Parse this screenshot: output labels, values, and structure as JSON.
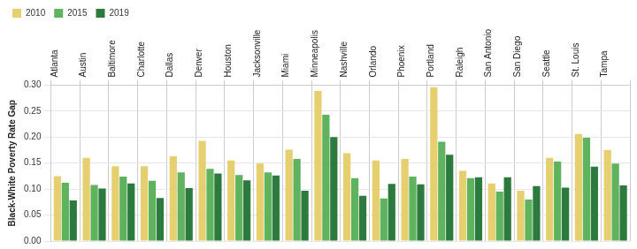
{
  "chart_data": {
    "type": "bar",
    "y_label": "Black-White Poverty Rate Gap",
    "categories": [
      "Atlanta",
      "Austin",
      "Baltimore",
      "Charlotte",
      "Dallas",
      "Denver",
      "Houston",
      "Jacksonville",
      "Miami",
      "Minneapolis",
      "Nashville",
      "Orlando",
      "Phoenix",
      "Portland",
      "Raleigh",
      "San Antonio",
      "San Diego",
      "Seattle",
      "St. Louis",
      "Tampa"
    ],
    "series": [
      {
        "name": "2010",
        "color": "#e6cf6e",
        "values": [
          0.125,
          0.16,
          0.144,
          0.144,
          0.163,
          0.193,
          0.155,
          0.149,
          0.176,
          0.289,
          0.169,
          0.155,
          0.158,
          0.296,
          0.135,
          0.111,
          0.097,
          0.16,
          0.206,
          0.175
        ]
      },
      {
        "name": "2015",
        "color": "#5fb35f",
        "values": [
          0.112,
          0.108,
          0.124,
          0.116,
          0.132,
          0.139,
          0.127,
          0.132,
          0.158,
          0.243,
          0.121,
          0.082,
          0.124,
          0.191,
          0.121,
          0.095,
          0.08,
          0.153,
          0.199,
          0.149
        ]
      },
      {
        "name": "2019",
        "color": "#2d7a3f",
        "values": [
          0.078,
          0.101,
          0.111,
          0.083,
          0.102,
          0.13,
          0.117,
          0.126,
          0.097,
          0.2,
          0.087,
          0.11,
          0.109,
          0.166,
          0.123,
          0.123,
          0.106,
          0.103,
          0.143,
          0.107
        ]
      }
    ],
    "ylim": [
      0,
      0.3
    ],
    "yticks": [
      {
        "value": 0,
        "label": "0.00"
      },
      {
        "value": 0.05,
        "label": "0.05"
      },
      {
        "value": 0.1,
        "label": "0.10"
      },
      {
        "value": 0.15,
        "label": "0.15"
      },
      {
        "value": 0.2,
        "label": "0.20"
      },
      {
        "value": 0.25,
        "label": "0.25"
      },
      {
        "value": 0.3,
        "label": "0.30"
      }
    ],
    "grid": true,
    "legend": "top-left"
  }
}
